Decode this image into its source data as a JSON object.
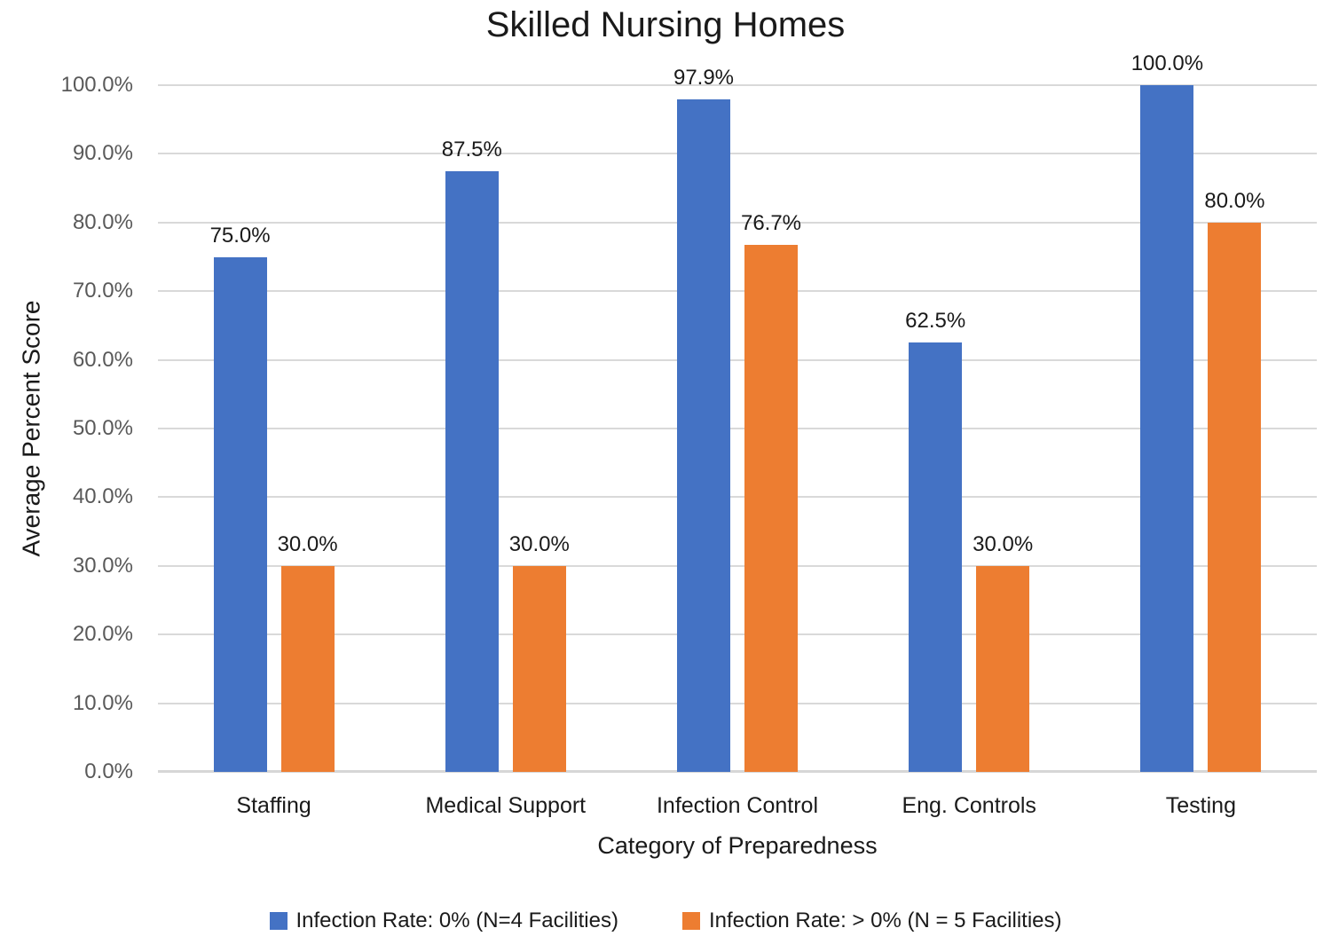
{
  "chart_data": {
    "type": "bar",
    "title": "Skilled Nursing Homes",
    "xlabel": "Category of Preparedness",
    "ylabel": "Average Percent Score",
    "categories": [
      "Staffing",
      "Medical Support",
      "Infection Control",
      "Eng. Controls",
      "Testing"
    ],
    "series": [
      {
        "name": "Infection Rate: 0% (N=4 Facilities)",
        "color": "#4472C4",
        "values": [
          75.0,
          87.5,
          97.9,
          62.5,
          100.0
        ],
        "labels": [
          "75.0%",
          "87.5%",
          "97.9%",
          "62.5%",
          "100.0%"
        ]
      },
      {
        "name": "Infection Rate: > 0% (N = 5 Facilities)",
        "color": "#ED7D31",
        "values": [
          30.0,
          30.0,
          76.7,
          30.0,
          80.0
        ],
        "labels": [
          "30.0%",
          "30.0%",
          "76.7%",
          "30.0%",
          "80.0%"
        ]
      }
    ],
    "ylim": [
      0,
      100
    ],
    "y_ticks": [
      "0.0%",
      "10.0%",
      "20.0%",
      "30.0%",
      "40.0%",
      "50.0%",
      "60.0%",
      "70.0%",
      "80.0%",
      "90.0%",
      "100.0%"
    ],
    "grid": true,
    "legend_position": "bottom"
  },
  "colors": {
    "series_blue": "#4472C4",
    "series_orange": "#ED7D31",
    "gridline": "#D9D9D9",
    "axis_line": "#D6D6D6",
    "y_tick_text": "#595959",
    "label_text": "#1A1A1A",
    "background": "#FFFFFF"
  }
}
